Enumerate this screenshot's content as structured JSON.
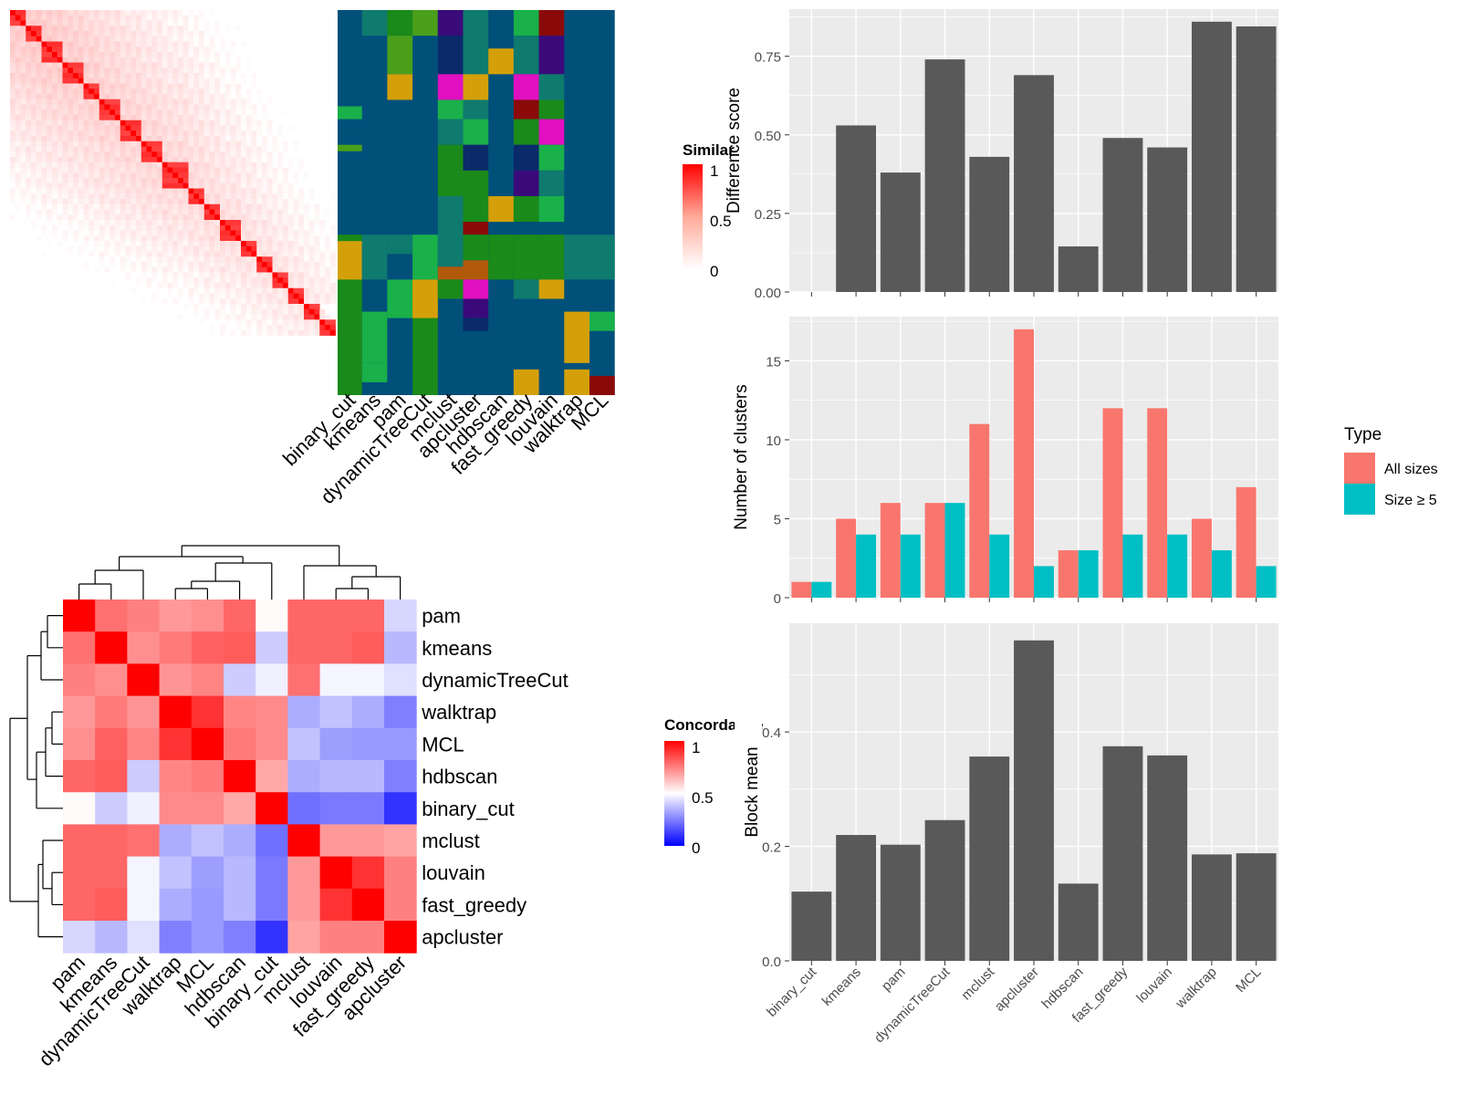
{
  "colors": {
    "panel_bg": "#ebebeb",
    "grid": "#ffffff",
    "bar": "#595959",
    "all_sizes": "#f8766d",
    "size_ge5": "#00bfc4",
    "heat_low_white": "#ffffff",
    "heat_high_red": "#ff0000",
    "concord_low_blue": "#0000ff",
    "cluster_bg": "#00507a"
  },
  "methods": [
    "binary_cut",
    "kmeans",
    "pam",
    "dynamicTreeCut",
    "mclust",
    "apcluster",
    "hdbscan",
    "fast_greedy",
    "louvain",
    "walktrap",
    "MCL"
  ],
  "similarity_heatmap": {
    "legend_title": "Similarity",
    "legend_ticks": [
      "1",
      "0.5",
      "0"
    ]
  },
  "concordance_heatmap": {
    "legend_title": "Concordance",
    "legend_ticks": [
      "1",
      "0.5",
      "0"
    ],
    "order": [
      "pam",
      "kmeans",
      "dynamicTreeCut",
      "walktrap",
      "MCL",
      "hdbscan",
      "binary_cut",
      "mclust",
      "louvain",
      "fast_greedy",
      "apcluster"
    ],
    "matrix": [
      [
        1.0,
        0.78,
        0.75,
        0.7,
        0.72,
        0.8,
        0.51,
        0.8,
        0.8,
        0.8,
        0.42
      ],
      [
        0.78,
        1.0,
        0.72,
        0.76,
        0.81,
        0.82,
        0.4,
        0.8,
        0.8,
        0.82,
        0.36
      ],
      [
        0.75,
        0.72,
        1.0,
        0.71,
        0.74,
        0.4,
        0.47,
        0.78,
        0.48,
        0.48,
        0.44
      ],
      [
        0.7,
        0.76,
        0.71,
        1.0,
        0.9,
        0.74,
        0.73,
        0.34,
        0.38,
        0.34,
        0.25
      ],
      [
        0.72,
        0.81,
        0.74,
        0.9,
        1.0,
        0.76,
        0.73,
        0.38,
        0.31,
        0.3,
        0.3
      ],
      [
        0.8,
        0.82,
        0.4,
        0.74,
        0.76,
        1.0,
        0.67,
        0.34,
        0.36,
        0.36,
        0.25
      ],
      [
        0.51,
        0.4,
        0.47,
        0.73,
        0.73,
        0.67,
        1.0,
        0.22,
        0.24,
        0.24,
        0.1
      ],
      [
        0.8,
        0.8,
        0.78,
        0.34,
        0.38,
        0.34,
        0.22,
        1.0,
        0.7,
        0.7,
        0.68
      ],
      [
        0.8,
        0.8,
        0.48,
        0.38,
        0.31,
        0.36,
        0.24,
        0.7,
        1.0,
        0.9,
        0.75
      ],
      [
        0.8,
        0.82,
        0.48,
        0.34,
        0.3,
        0.36,
        0.24,
        0.7,
        0.9,
        1.0,
        0.75
      ],
      [
        0.42,
        0.36,
        0.44,
        0.25,
        0.3,
        0.25,
        0.1,
        0.68,
        0.75,
        0.75,
        1.0
      ]
    ]
  },
  "chart_data": [
    {
      "type": "bar",
      "categories": [
        "binary_cut",
        "kmeans",
        "pam",
        "dynamicTreeCut",
        "mclust",
        "apcluster",
        "hdbscan",
        "fast_greedy",
        "louvain",
        "walktrap",
        "MCL"
      ],
      "values": [
        0.0,
        0.53,
        0.38,
        0.74,
        0.43,
        0.69,
        0.145,
        0.49,
        0.46,
        0.86,
        0.845
      ],
      "xlabel": "",
      "ylabel": "Difference score",
      "ylim": [
        0,
        0.9
      ],
      "yticks": [
        "0.00",
        "0.25",
        "0.50",
        "0.75"
      ],
      "grid": true
    },
    {
      "type": "bar",
      "categories": [
        "binary_cut",
        "kmeans",
        "pam",
        "dynamicTreeCut",
        "mclust",
        "apcluster",
        "hdbscan",
        "fast_greedy",
        "louvain",
        "walktrap",
        "MCL"
      ],
      "series": [
        {
          "name": "All sizes",
          "values": [
            1,
            5,
            6,
            6,
            11,
            17,
            3,
            12,
            12,
            5,
            7
          ]
        },
        {
          "name": "Size ≥ 5",
          "values": [
            1,
            4,
            4,
            6,
            4,
            2,
            3,
            4,
            4,
            3,
            2
          ]
        }
      ],
      "xlabel": "",
      "ylabel": "Number of clusters",
      "ylim": [
        0,
        17.8
      ],
      "yticks": [
        "0",
        "5",
        "10",
        "15"
      ],
      "legend_title": "Type",
      "legend_position": "right",
      "grid": true
    },
    {
      "type": "bar",
      "categories": [
        "binary_cut",
        "kmeans",
        "pam",
        "dynamicTreeCut",
        "mclust",
        "apcluster",
        "hdbscan",
        "fast_greedy",
        "louvain",
        "walktrap",
        "MCL"
      ],
      "values": [
        0.121,
        0.22,
        0.203,
        0.246,
        0.357,
        0.56,
        0.135,
        0.375,
        0.359,
        0.186,
        0.188
      ],
      "xlabel": "",
      "ylabel": "Block mean",
      "ylim": [
        0,
        0.59
      ],
      "yticks": [
        "0.0",
        "0.2",
        "0.4"
      ],
      "grid": true
    }
  ]
}
